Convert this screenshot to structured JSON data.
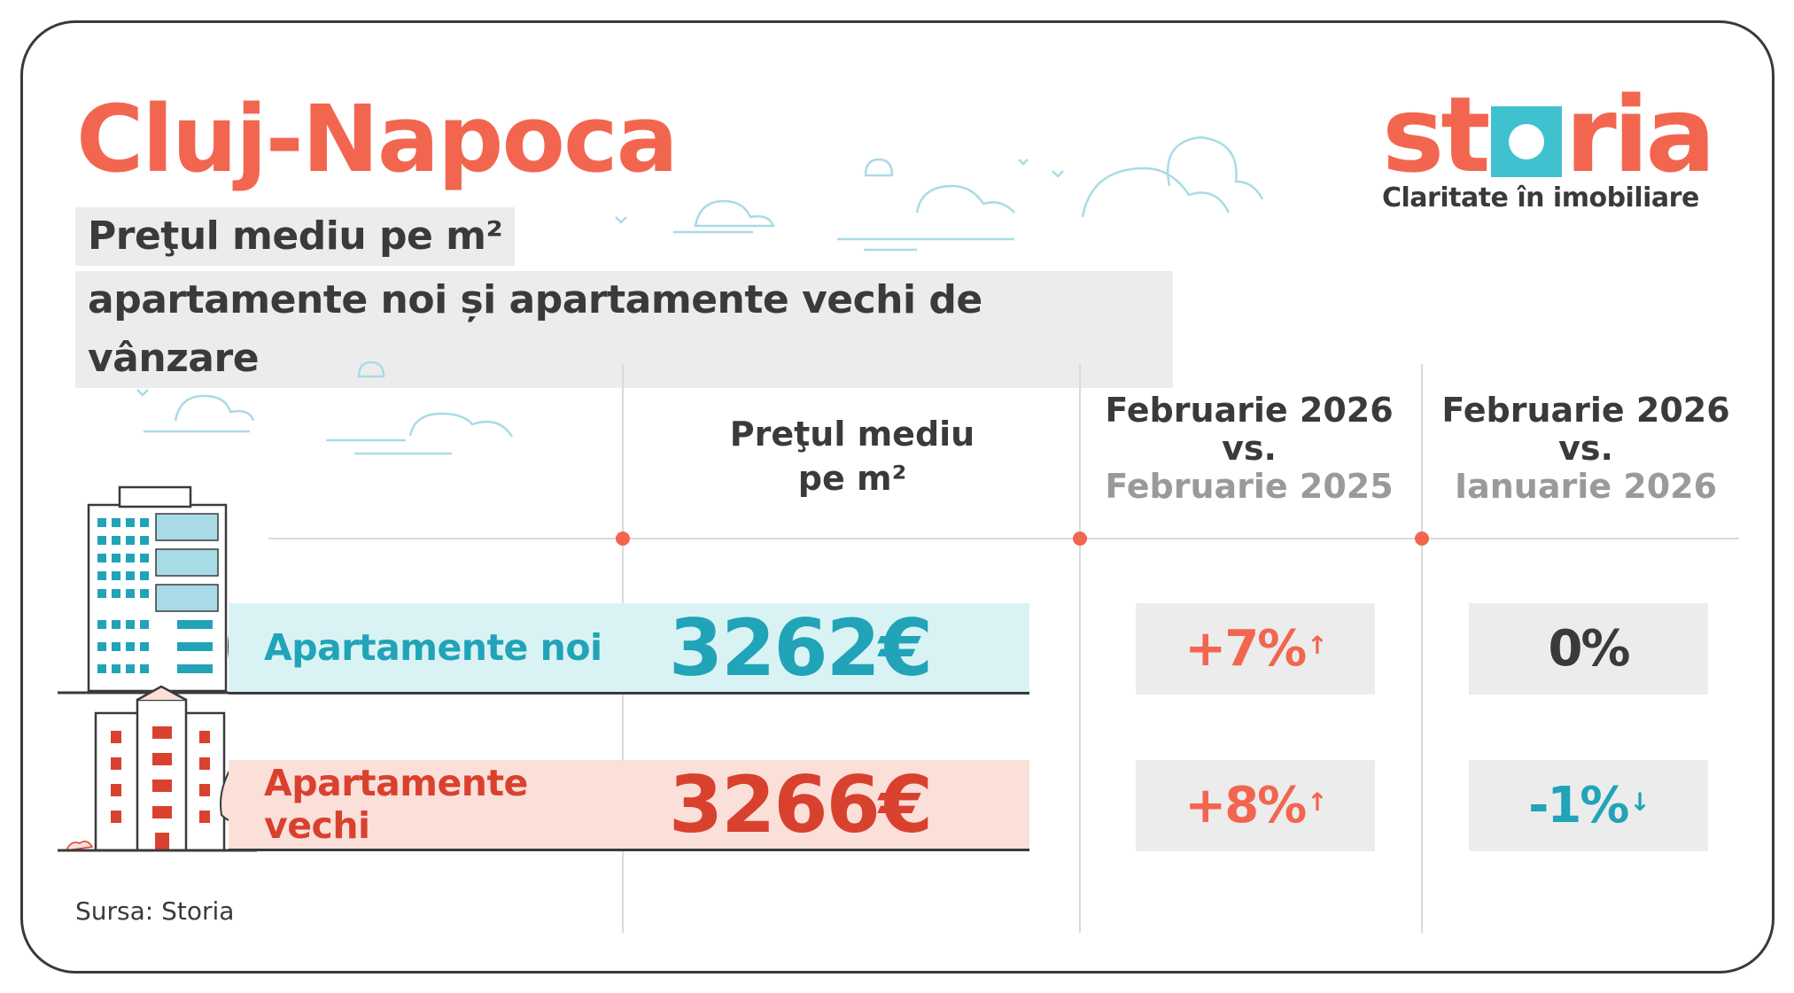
{
  "header": {
    "title": "Cluj-Napoca",
    "subtitle_line1": "Preţul mediu pe m²",
    "subtitle_line2": "apartamente noi și apartamente vechi de vânzare"
  },
  "logo": {
    "wordmark": "storia",
    "tagline": "Claritate în imobiliare"
  },
  "columns": {
    "price": {
      "line1": "Preţul mediu",
      "line2": "pe m²"
    },
    "yoy": {
      "line1": "Februarie 2026",
      "line2": "vs.",
      "line3": "Februarie 2025"
    },
    "mom": {
      "line1": "Februarie 2026",
      "line2": "vs.",
      "line3": "Ianuarie 2026"
    }
  },
  "rows": [
    {
      "label": "Apartamente noi",
      "price": "3262€",
      "yoy": "+7%",
      "yoy_trend": "up",
      "mom": "0%",
      "mom_trend": "neutral",
      "arrow_up": "↑",
      "arrow_none": ""
    },
    {
      "label": "Apartamente vechi",
      "price": "3266€",
      "yoy": "+8%",
      "yoy_trend": "up",
      "mom": "-1%",
      "mom_trend": "down",
      "arrow_up": "↑",
      "arrow_down": "↓"
    }
  ],
  "source": "Sursa: Storia",
  "colors": {
    "brand_coral": "#f26650",
    "brand_teal": "#3fc1d0",
    "new_band": "#d9f3f5",
    "old_band": "#fbdfd9",
    "up": "#f26650",
    "down": "#21a3b8"
  },
  "icons": [
    "cloud-icon",
    "bird-icon",
    "new-building-icon",
    "old-building-icon",
    "tree-icon"
  ]
}
